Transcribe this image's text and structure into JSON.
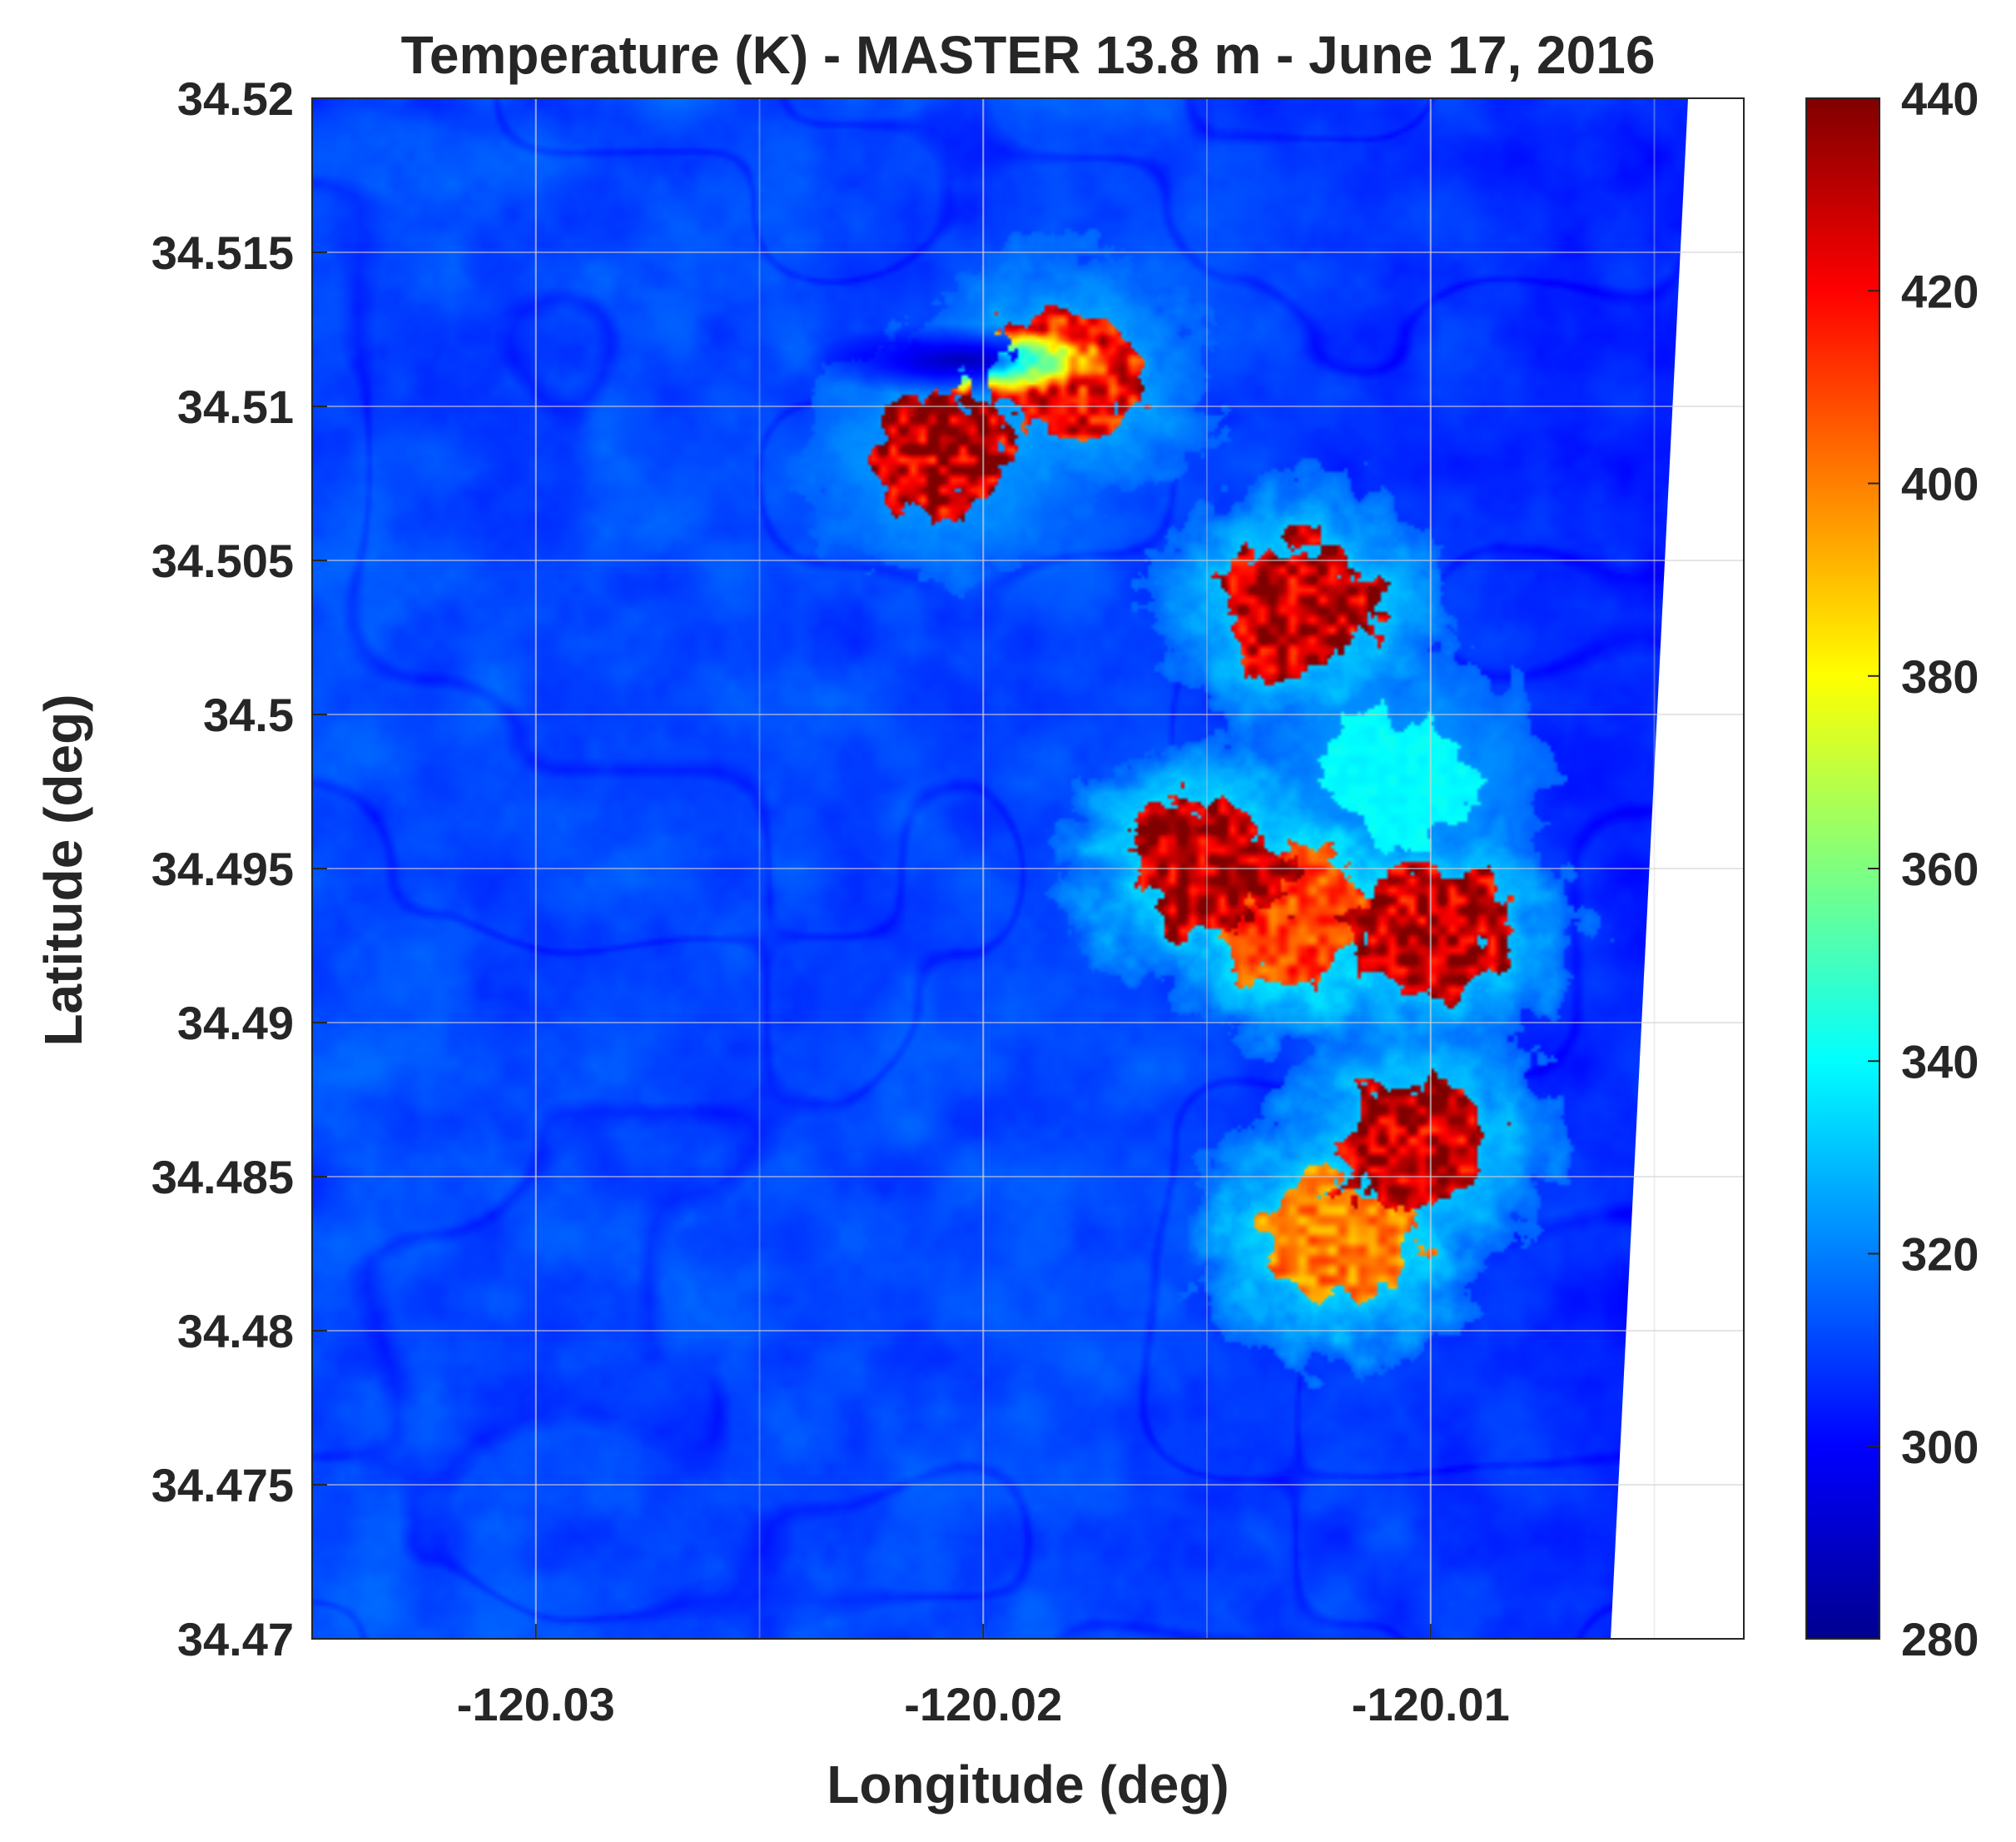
{
  "chart_data": {
    "type": "heatmap",
    "title": "Temperature (K) - MASTER 13.8 m - June 17, 2016",
    "xlabel": "Longitude (deg)",
    "ylabel": "Latitude (deg)",
    "xlim": [
      -120.035,
      -120.003
    ],
    "ylim": [
      34.47,
      34.52
    ],
    "x_ticks": [
      -120.03,
      -120.02,
      -120.01
    ],
    "x_tick_labels": [
      "-120.03",
      "-120.02",
      "-120.01"
    ],
    "y_ticks": [
      34.47,
      34.475,
      34.48,
      34.485,
      34.49,
      34.495,
      34.5,
      34.505,
      34.51,
      34.515,
      34.52
    ],
    "y_tick_labels": [
      "34.47",
      "34.475",
      "34.48",
      "34.485",
      "34.49",
      "34.495",
      "34.5",
      "34.505",
      "34.51",
      "34.515",
      "34.52"
    ],
    "grid": true,
    "colormap": "jet",
    "color_range": [
      280,
      440
    ],
    "colorbar_ticks": [
      280,
      300,
      320,
      340,
      360,
      380,
      400,
      420,
      440
    ],
    "colorbar_tick_labels": [
      "280",
      "300",
      "320",
      "340",
      "360",
      "380",
      "400",
      "420",
      "440"
    ],
    "background_temperature": 315,
    "hot_regions": [
      {
        "lon": -120.0209,
        "lat": 34.5085,
        "peak": 430,
        "halo": 330
      },
      {
        "lon": -120.0182,
        "lat": 34.511,
        "peak": 420,
        "halo": 335
      },
      {
        "lon": -120.0129,
        "lat": 34.5035,
        "peak": 430,
        "halo": 345
      },
      {
        "lon": -120.015,
        "lat": 34.495,
        "peak": 430,
        "halo": 350
      },
      {
        "lon": -120.013,
        "lat": 34.4935,
        "peak": 410,
        "halo": 355
      },
      {
        "lon": -120.01,
        "lat": 34.493,
        "peak": 430,
        "halo": 345
      },
      {
        "lon": -120.0107,
        "lat": 34.498,
        "peak": 340,
        "halo": 330
      },
      {
        "lon": -120.0104,
        "lat": 34.486,
        "peak": 430,
        "halo": 345
      },
      {
        "lon": -120.012,
        "lat": 34.483,
        "peak": 400,
        "halo": 350
      }
    ],
    "cool_regions": [
      {
        "lon": -120.0205,
        "lat": 34.5115,
        "value": 288
      }
    ]
  }
}
